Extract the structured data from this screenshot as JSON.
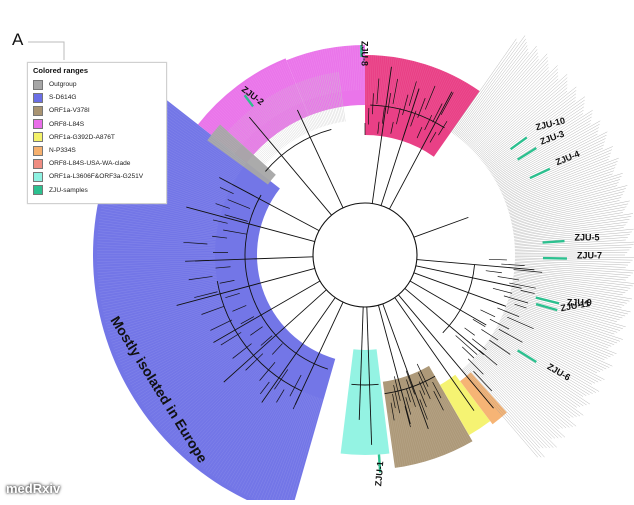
{
  "panel": {
    "letter": "A"
  },
  "legend": {
    "title": "Colored ranges",
    "items": [
      {
        "label": "Outgroup",
        "color": "#a6a6a6"
      },
      {
        "label": "S-D614G",
        "color": "#6b6fe6"
      },
      {
        "label": "ORF1a-V378I",
        "color": "#a99472"
      },
      {
        "label": "ORF8-L84S",
        "color": "#e96ee9"
      },
      {
        "label": "ORF1a-G392D-A876T",
        "color": "#f4f26a"
      },
      {
        "label": "N-P334S",
        "color": "#f6b06e"
      },
      {
        "label": "ORF8-L84S-USA-WA-clade",
        "color": "#ef8d82"
      },
      {
        "label": "ORF1a-L3606F&ORF3a-G251V",
        "color": "#8ef2e2"
      },
      {
        "label": "ZJU-samples",
        "color": "#2cc08f"
      }
    ]
  },
  "annotation": {
    "text": "Mostly isolated in Europe"
  },
  "samples": [
    {
      "id": "ZJU-1"
    },
    {
      "id": "ZJU-2"
    },
    {
      "id": "ZJU-3"
    },
    {
      "id": "ZJU-4"
    },
    {
      "id": "ZJU-5"
    },
    {
      "id": "ZJU-6"
    },
    {
      "id": "ZJU-7"
    },
    {
      "id": "ZJU-8"
    },
    {
      "id": "ZJU-9"
    },
    {
      "id": "ZJU-10"
    },
    {
      "id": "ZJU-11"
    }
  ],
  "colors": {
    "sample_tick": "#2cc08f",
    "pink_clade": "#e8367f",
    "branch": "#111111",
    "leaf": "#9a9a9a"
  },
  "watermark": "medRxiv"
}
